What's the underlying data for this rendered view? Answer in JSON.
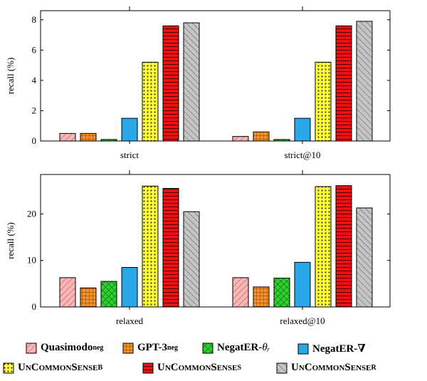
{
  "chart_data": [
    {
      "type": "bar",
      "ylabel": "recall (%)",
      "categories": [
        "strict",
        "strict@10"
      ],
      "yticks": [
        "0",
        "2",
        "4",
        "6",
        "8"
      ],
      "ylim": [
        0,
        8.6
      ],
      "series": [
        {
          "name": "Quasimodo",
          "values": [
            0.5,
            0.3
          ]
        },
        {
          "name": "GPT-3",
          "values": [
            0.5,
            0.6
          ]
        },
        {
          "name": "NegatER-θr",
          "values": [
            0.1,
            0.1
          ]
        },
        {
          "name": "NegatER-∇",
          "values": [
            1.5,
            1.5
          ]
        },
        {
          "name": "UnCommonSense B",
          "values": [
            5.2,
            5.2
          ]
        },
        {
          "name": "UnCommonSense S",
          "values": [
            7.6,
            7.6
          ]
        },
        {
          "name": "UnCommonSense R",
          "values": [
            7.8,
            7.9
          ]
        }
      ]
    },
    {
      "type": "bar",
      "ylabel": "recall (%)",
      "categories": [
        "relaxed",
        "relaxed@10"
      ],
      "yticks": [
        "0",
        "10",
        "20"
      ],
      "ylim": [
        0,
        28.5
      ],
      "series": [
        {
          "name": "Quasimodo",
          "values": [
            6.3,
            6.3
          ]
        },
        {
          "name": "GPT-3",
          "values": [
            4.1,
            4.3
          ]
        },
        {
          "name": "NegatER-θr",
          "values": [
            5.5,
            6.2
          ]
        },
        {
          "name": "NegatER-∇",
          "values": [
            8.5,
            9.6
          ]
        },
        {
          "name": "UnCommonSense B",
          "values": [
            26.0,
            25.9
          ]
        },
        {
          "name": "UnCommonSense S",
          "values": [
            25.5,
            26.1
          ]
        },
        {
          "name": "UnCommonSense R",
          "values": [
            20.5,
            21.3
          ]
        }
      ]
    }
  ],
  "legend": [
    {
      "base": "Quasimodo",
      "sup": "neg",
      "sc": false,
      "italic_suffix": ""
    },
    {
      "base": "GPT-3",
      "sup": "neg",
      "sc": false,
      "italic_suffix": ""
    },
    {
      "base": "NegatER-",
      "sup": "",
      "sc": false,
      "italic_suffix": "θᵣ"
    },
    {
      "base": "NegatER-∇",
      "sup": "",
      "sc": false,
      "italic_suffix": ""
    },
    {
      "base": "UnCommonSense",
      "sup": "B",
      "sc": true,
      "italic_suffix": ""
    },
    {
      "base": "UnCommonSense",
      "sup": "S",
      "sc": true,
      "italic_suffix": ""
    },
    {
      "base": "UnCommonSense",
      "sup": "R",
      "sc": true,
      "italic_suffix": ""
    }
  ],
  "colors": {
    "quasimodo": "#f4b8b8",
    "gpt3": "#f5922a",
    "negater_theta": "#2fd12f",
    "negater_nabla": "#2aa7e6",
    "ucs_b": "#ffff33",
    "ucs_s": "#f01010",
    "ucs_r": "#c4c4c4"
  }
}
